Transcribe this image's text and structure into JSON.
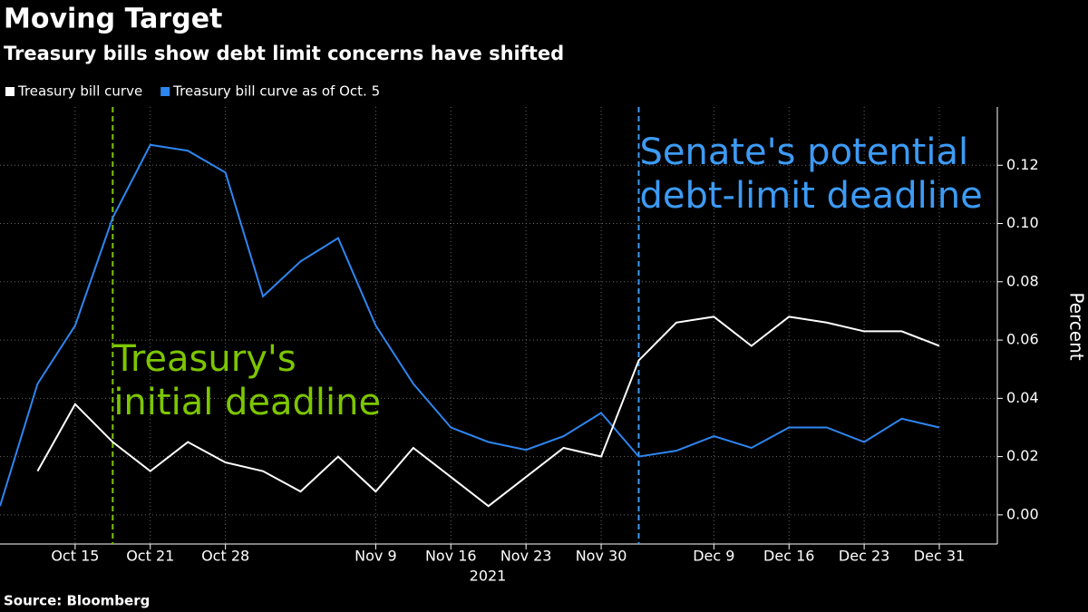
{
  "chart_data": {
    "type": "line",
    "title": "Moving Target",
    "subtitle": "Treasury bills show debt limit concerns have shifted",
    "source": "Source: Bloomberg",
    "x_axis_label": "2021",
    "y_axis_label": "Percent",
    "categories": [
      null,
      null,
      "Oct 15",
      null,
      "Oct 21",
      null,
      "Oct 28",
      null,
      null,
      null,
      "Nov 9",
      null,
      "Nov 16",
      null,
      "Nov 23",
      null,
      "Nov 30",
      null,
      null,
      "Dec 9",
      null,
      "Dec 16",
      null,
      "Dec 23",
      null,
      "Dec 31"
    ],
    "series": [
      {
        "name": "Treasury bill curve",
        "color": "#ffffff",
        "values": [
          null,
          0.015,
          0.038,
          0.025,
          0.015,
          0.025,
          0.018,
          0.015,
          0.008,
          0.02,
          0.008,
          0.023,
          0.013,
          0.003,
          0.013,
          0.023,
          0.02,
          0.053,
          0.066,
          0.068,
          0.058,
          0.068,
          0.066,
          0.063,
          0.063,
          0.058
        ]
      },
      {
        "name": "Treasury bill curve as of Oct. 5",
        "color": "#2e86f0",
        "values": [
          0.003,
          0.045,
          0.065,
          0.102,
          0.127,
          0.125,
          0.1175,
          0.075,
          0.087,
          0.095,
          0.065,
          0.045,
          0.03,
          0.025,
          0.0223,
          0.027,
          0.035,
          0.02,
          0.022,
          0.027,
          0.023,
          0.03,
          0.03,
          0.025,
          0.033,
          0.03
        ]
      }
    ],
    "ylim": [
      -0.01,
      0.14
    ],
    "yticks": [
      {
        "value": 0,
        "label": "0.00"
      },
      {
        "value": 0.02,
        "label": "0.02"
      },
      {
        "value": 0.04,
        "label": "0.04"
      },
      {
        "value": 0.06,
        "label": "0.06"
      },
      {
        "value": 0.08,
        "label": "0.08"
      },
      {
        "value": 0.1,
        "label": "0.10"
      },
      {
        "value": 0.12,
        "label": "0.12"
      }
    ],
    "grid": true,
    "annotations": [
      {
        "text": [
          "Treasury's",
          "initial deadline"
        ],
        "color": "#7dc600"
      },
      {
        "text": [
          "Senate's potential",
          "debt-limit deadline"
        ],
        "color": "#3d9bf5"
      }
    ]
  }
}
